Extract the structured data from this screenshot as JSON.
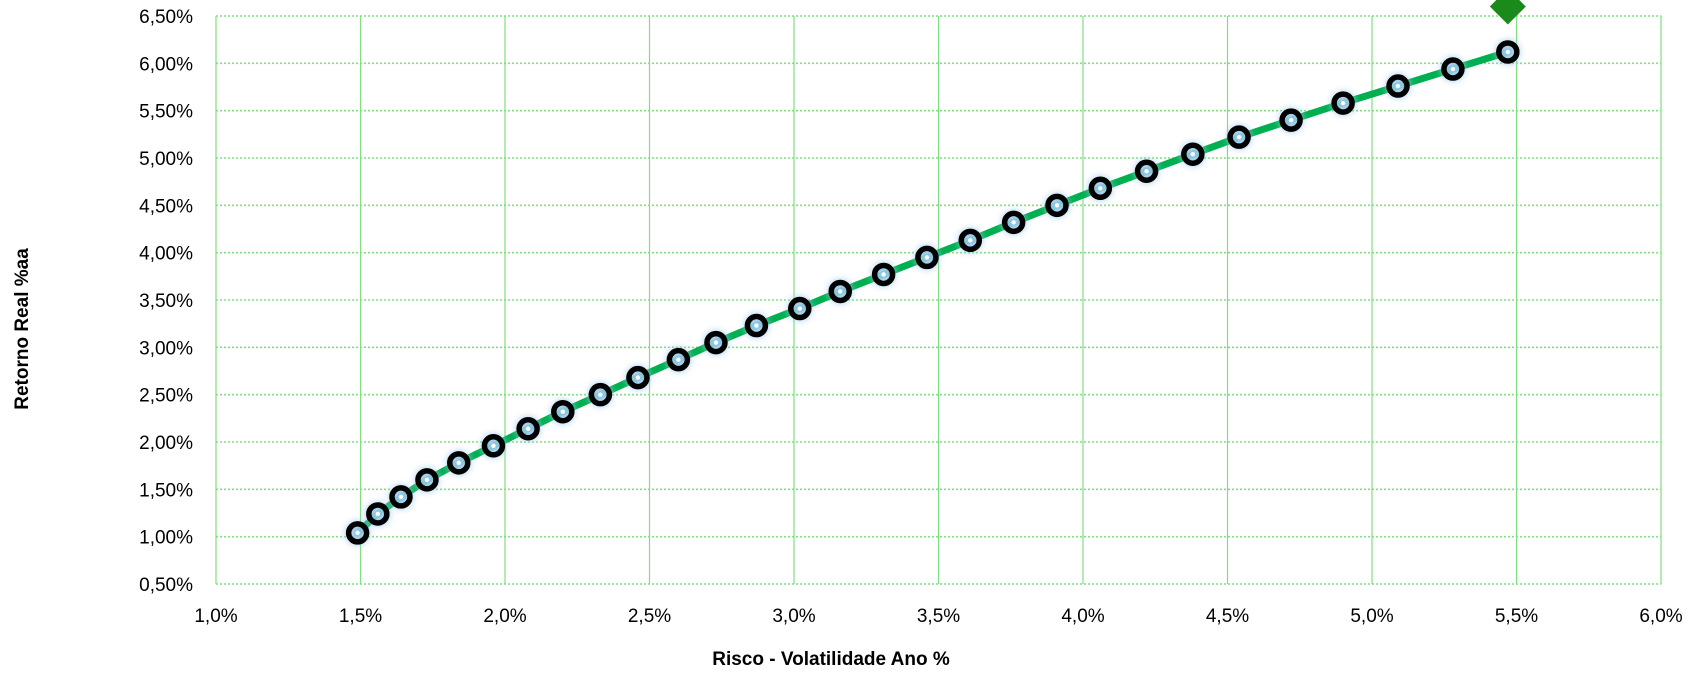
{
  "chart_data": {
    "type": "line",
    "title": "",
    "xlabel": "Risco - Volatilidade Ano %",
    "ylabel": "Retorno Real %aa",
    "xlim": [
      1.0,
      6.0
    ],
    "ylim": [
      0.5,
      6.5
    ],
    "x_ticks": [
      "1,0%",
      "1,5%",
      "2,0%",
      "2,5%",
      "3,0%",
      "3,5%",
      "4,0%",
      "4,5%",
      "5,0%",
      "5,5%",
      "6,0%"
    ],
    "y_ticks": [
      "0,50%",
      "1,00%",
      "1,50%",
      "2,00%",
      "2,50%",
      "3,00%",
      "3,50%",
      "4,00%",
      "4,50%",
      "5,00%",
      "5,50%",
      "6,00%",
      "6,50%"
    ],
    "grid": true,
    "series": [
      {
        "marker": "black-circle",
        "color": "#00b050",
        "x": [
          1.49,
          1.56,
          1.64,
          1.73,
          1.84,
          1.96,
          2.08,
          2.2,
          2.33,
          2.46,
          2.6,
          2.73,
          2.87,
          3.02,
          3.16,
          3.31,
          3.46,
          3.61,
          3.76,
          3.91,
          4.06,
          4.22,
          4.38,
          4.54,
          4.72,
          4.9,
          5.09,
          5.28,
          5.47
        ],
        "y": [
          1.04,
          1.24,
          1.42,
          1.6,
          1.78,
          1.96,
          2.14,
          2.32,
          2.5,
          2.68,
          2.87,
          3.05,
          3.23,
          3.41,
          3.59,
          3.77,
          3.95,
          4.13,
          4.32,
          4.5,
          4.68,
          4.86,
          5.04,
          5.22,
          5.4,
          5.58,
          5.76,
          5.94,
          6.12
        ]
      }
    ],
    "annotations": [
      {
        "shape": "diamond",
        "color": "#1a8a1a",
        "x": 5.47,
        "y": 6.6
      }
    ],
    "colors": {
      "grid": "#7fe07f",
      "line": "#00b050",
      "marker": "#000000",
      "marker_center": "#ffffff",
      "glow": "#9cc9ee",
      "annotation": "#1a8a1a"
    }
  }
}
